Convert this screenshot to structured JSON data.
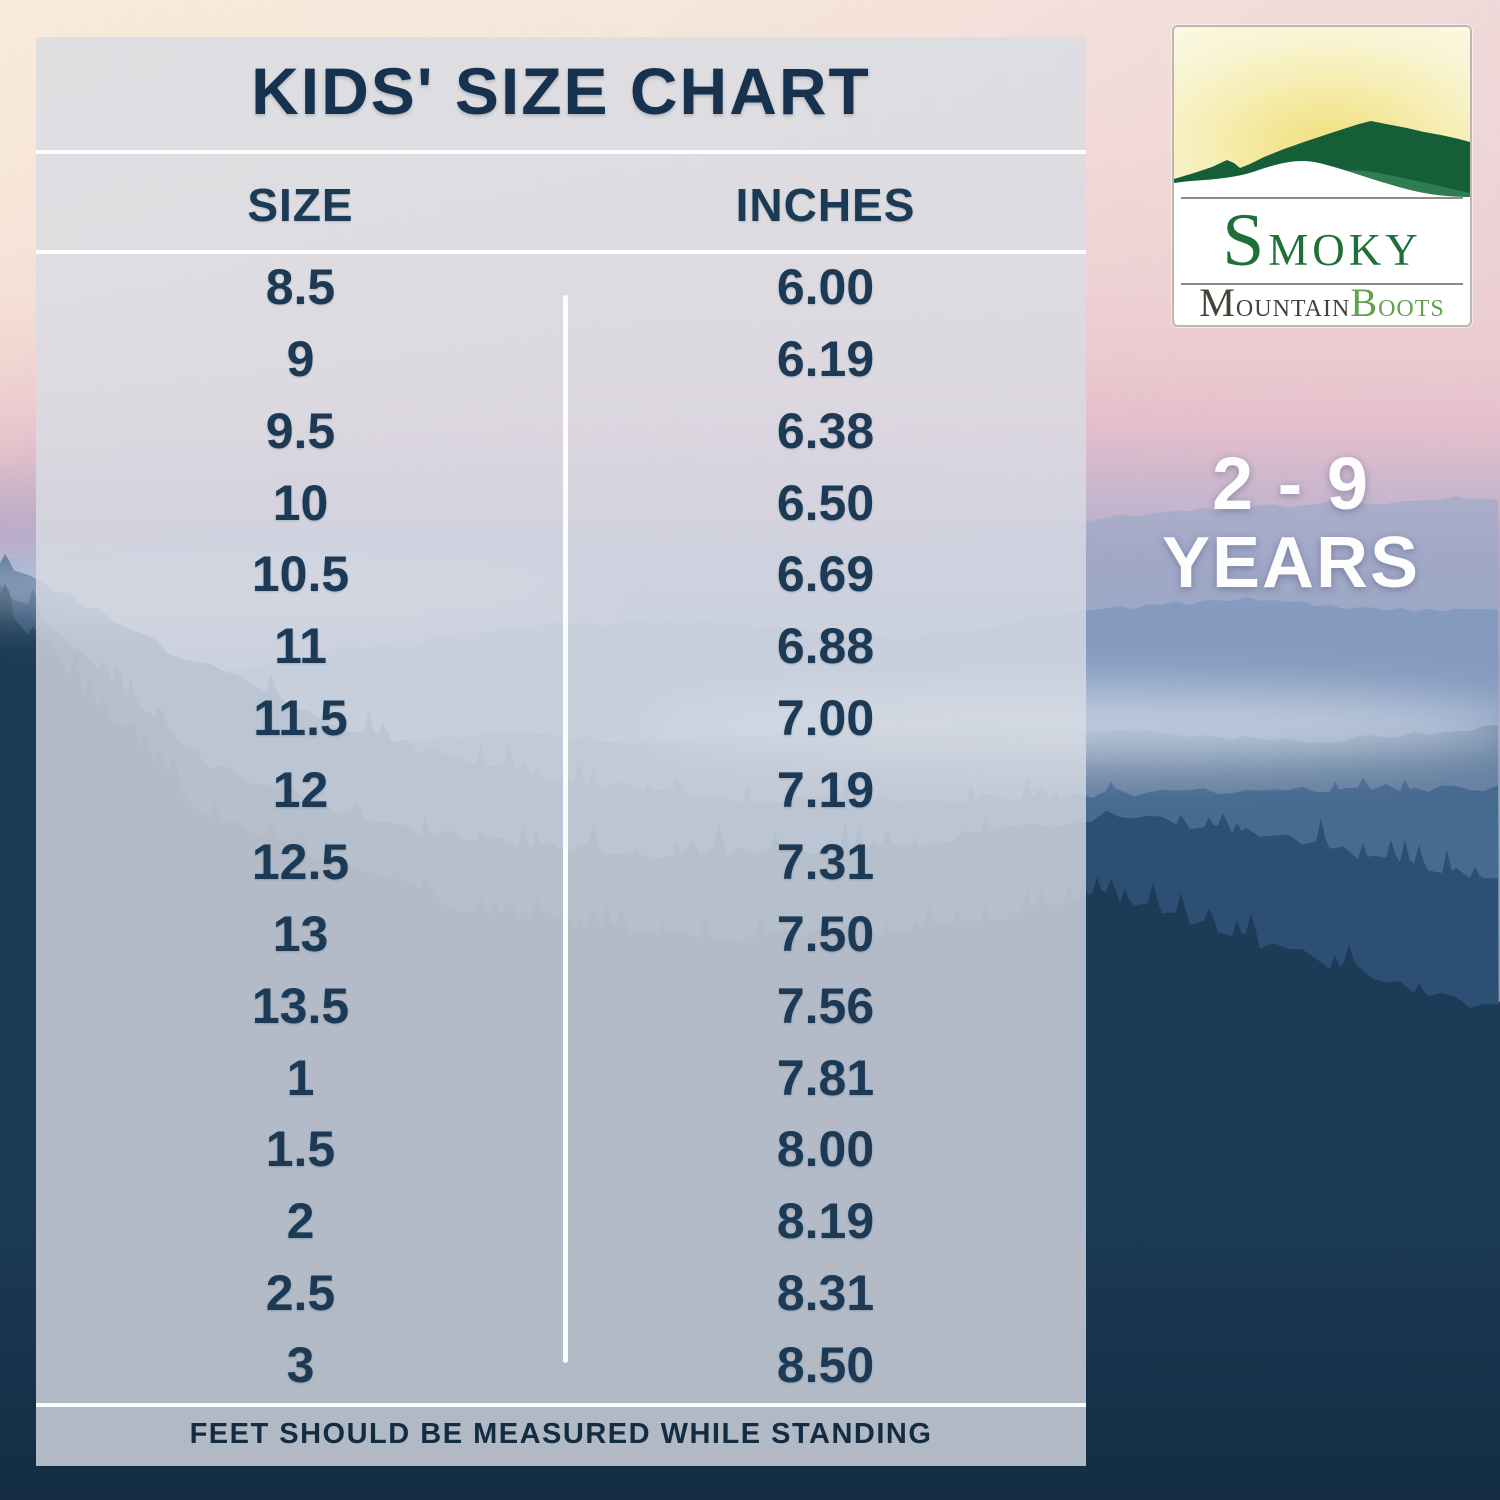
{
  "chart_data": {
    "type": "table",
    "title": "KIDS' SIZE CHART",
    "columns": [
      "SIZE",
      "INCHES"
    ],
    "rows": [
      [
        "8.5",
        "6.00"
      ],
      [
        "9",
        "6.19"
      ],
      [
        "9.5",
        "6.38"
      ],
      [
        "10",
        "6.50"
      ],
      [
        "10.5",
        "6.69"
      ],
      [
        "11",
        "6.88"
      ],
      [
        "11.5",
        "7.00"
      ],
      [
        "12",
        "7.19"
      ],
      [
        "12.5",
        "7.31"
      ],
      [
        "13",
        "7.50"
      ],
      [
        "13.5",
        "7.56"
      ],
      [
        "1",
        "7.81"
      ],
      [
        "1.5",
        "8.00"
      ],
      [
        "2",
        "8.19"
      ],
      [
        "2.5",
        "8.31"
      ],
      [
        "3",
        "8.50"
      ]
    ],
    "footnote": "FEET SHOULD BE MEASURED WHILE STANDING"
  },
  "logo": {
    "line1": "Smoky",
    "line2_part1": "Mountain",
    "line2_part2": "Boots"
  },
  "age_range": {
    "line1": "2 - 9",
    "line2": "YEARS"
  },
  "colors": {
    "text_navy": "#1c3a55",
    "panel_tint": "#d8dce3",
    "divider_white": "#ffffff",
    "brand_green": "#1e6f38",
    "brand_gray": "#474239",
    "boots_green": "#61a24f",
    "logo_dark_green": "#155f38",
    "logo_light_green": "#2f7c50",
    "sky_peach": "#f5e4da",
    "sky_pink": "#e5c0ca",
    "sky_lavender": "#b3aac8",
    "mountain_blue": "#7e96ba",
    "forest_navy": "#1c3b57"
  }
}
